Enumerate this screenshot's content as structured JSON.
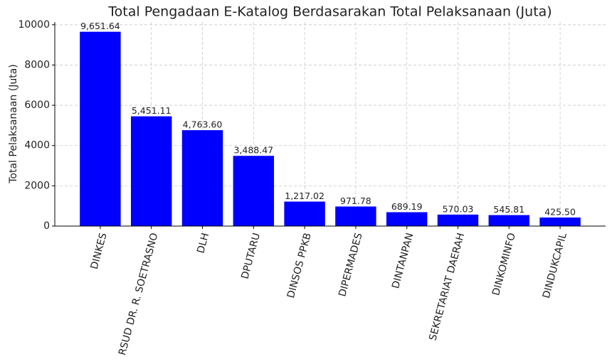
{
  "chart_data": {
    "type": "bar",
    "title": "Total Pengadaan E-Katalog Berdasarakan Total Pelaksanaan (Juta)",
    "y_label": "Total Pelaksanaan (Juta)",
    "categories": [
      "DINKES",
      "RSUD DR. R. SOETRASNO",
      "DLH",
      "DPUTARU",
      "DINSOS PPKB",
      "DIPERMADES",
      "DINTANPAN",
      "SEKRETARIAT DAERAH",
      "DINKOMINFO",
      "DINDUKCAPIL"
    ],
    "values": [
      9651.64,
      5451.11,
      4763.6,
      3488.47,
      1217.02,
      971.78,
      689.19,
      570.03,
      545.81,
      425.5
    ],
    "value_labels": [
      "9,651.64",
      "5,451.11",
      "4,763.60",
      "3,488.47",
      "1,217.02",
      "971.78",
      "689.19",
      "570.03",
      "545.81",
      "425.50"
    ],
    "color": "#0000ff",
    "ylim": [
      0,
      10134
    ],
    "yticks": [
      0,
      2000,
      4000,
      6000,
      8000,
      10000
    ],
    "grid": true
  }
}
